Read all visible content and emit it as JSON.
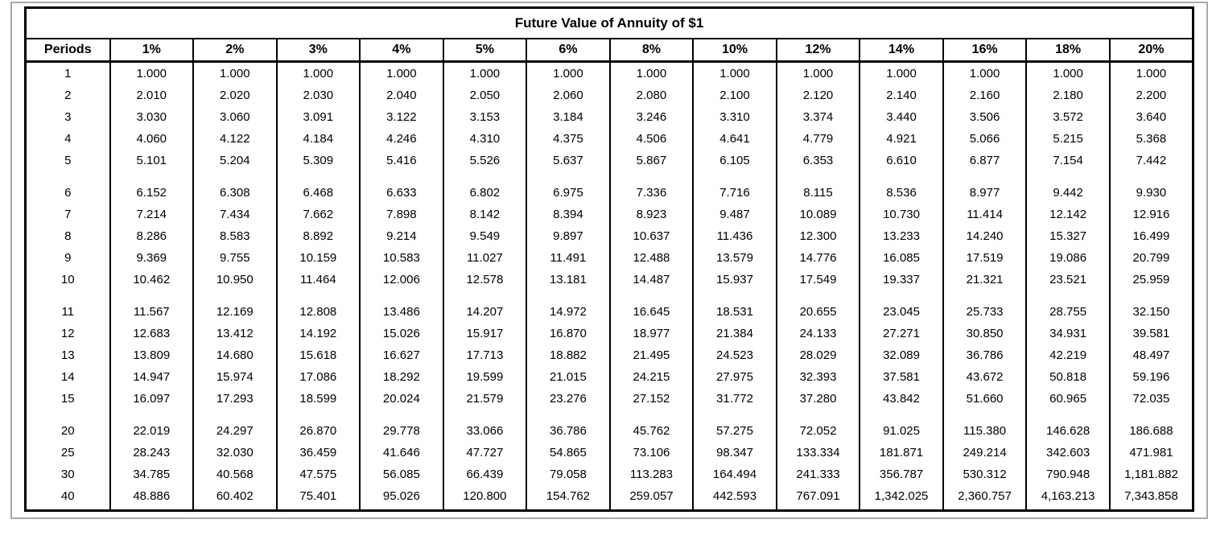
{
  "chart_data": {
    "type": "table",
    "title": "Future Value of Annuity of $1",
    "columns": [
      "Periods",
      "1%",
      "2%",
      "3%",
      "4%",
      "5%",
      "6%",
      "8%",
      "10%",
      "12%",
      "14%",
      "16%",
      "18%",
      "20%"
    ],
    "row_groups": [
      [
        [
          "1",
          "1.000",
          "1.000",
          "1.000",
          "1.000",
          "1.000",
          "1.000",
          "1.000",
          "1.000",
          "1.000",
          "1.000",
          "1.000",
          "1.000",
          "1.000"
        ],
        [
          "2",
          "2.010",
          "2.020",
          "2.030",
          "2.040",
          "2.050",
          "2.060",
          "2.080",
          "2.100",
          "2.120",
          "2.140",
          "2.160",
          "2.180",
          "2.200"
        ],
        [
          "3",
          "3.030",
          "3.060",
          "3.091",
          "3.122",
          "3.153",
          "3.184",
          "3.246",
          "3.310",
          "3.374",
          "3.440",
          "3.506",
          "3.572",
          "3.640"
        ],
        [
          "4",
          "4.060",
          "4.122",
          "4.184",
          "4.246",
          "4.310",
          "4.375",
          "4.506",
          "4.641",
          "4.779",
          "4.921",
          "5.066",
          "5.215",
          "5.368"
        ],
        [
          "5",
          "5.101",
          "5.204",
          "5.309",
          "5.416",
          "5.526",
          "5.637",
          "5.867",
          "6.105",
          "6.353",
          "6.610",
          "6.877",
          "7.154",
          "7.442"
        ]
      ],
      [
        [
          "6",
          "6.152",
          "6.308",
          "6.468",
          "6.633",
          "6.802",
          "6.975",
          "7.336",
          "7.716",
          "8.115",
          "8.536",
          "8.977",
          "9.442",
          "9.930"
        ],
        [
          "7",
          "7.214",
          "7.434",
          "7.662",
          "7.898",
          "8.142",
          "8.394",
          "8.923",
          "9.487",
          "10.089",
          "10.730",
          "11.414",
          "12.142",
          "12.916"
        ],
        [
          "8",
          "8.286",
          "8.583",
          "8.892",
          "9.214",
          "9.549",
          "9.897",
          "10.637",
          "11.436",
          "12.300",
          "13.233",
          "14.240",
          "15.327",
          "16.499"
        ],
        [
          "9",
          "9.369",
          "9.755",
          "10.159",
          "10.583",
          "11.027",
          "11.491",
          "12.488",
          "13.579",
          "14.776",
          "16.085",
          "17.519",
          "19.086",
          "20.799"
        ],
        [
          "10",
          "10.462",
          "10.950",
          "11.464",
          "12.006",
          "12.578",
          "13.181",
          "14.487",
          "15.937",
          "17.549",
          "19.337",
          "21.321",
          "23.521",
          "25.959"
        ]
      ],
      [
        [
          "11",
          "11.567",
          "12.169",
          "12.808",
          "13.486",
          "14.207",
          "14.972",
          "16.645",
          "18.531",
          "20.655",
          "23.045",
          "25.733",
          "28.755",
          "32.150"
        ],
        [
          "12",
          "12.683",
          "13.412",
          "14.192",
          "15.026",
          "15.917",
          "16.870",
          "18.977",
          "21.384",
          "24.133",
          "27.271",
          "30.850",
          "34.931",
          "39.581"
        ],
        [
          "13",
          "13.809",
          "14.680",
          "15.618",
          "16.627",
          "17.713",
          "18.882",
          "21.495",
          "24.523",
          "28.029",
          "32.089",
          "36.786",
          "42.219",
          "48.497"
        ],
        [
          "14",
          "14.947",
          "15.974",
          "17.086",
          "18.292",
          "19.599",
          "21.015",
          "24.215",
          "27.975",
          "32.393",
          "37.581",
          "43.672",
          "50.818",
          "59.196"
        ],
        [
          "15",
          "16.097",
          "17.293",
          "18.599",
          "20.024",
          "21.579",
          "23.276",
          "27.152",
          "31.772",
          "37.280",
          "43.842",
          "51.660",
          "60.965",
          "72.035"
        ]
      ],
      [
        [
          "20",
          "22.019",
          "24.297",
          "26.870",
          "29.778",
          "33.066",
          "36.786",
          "45.762",
          "57.275",
          "72.052",
          "91.025",
          "115.380",
          "146.628",
          "186.688"
        ],
        [
          "25",
          "28.243",
          "32.030",
          "36.459",
          "41.646",
          "47.727",
          "54.865",
          "73.106",
          "98.347",
          "133.334",
          "181.871",
          "249.214",
          "342.603",
          "471.981"
        ],
        [
          "30",
          "34.785",
          "40.568",
          "47.575",
          "56.085",
          "66.439",
          "79.058",
          "113.283",
          "164.494",
          "241.333",
          "356.787",
          "530.312",
          "790.948",
          "1,181.882"
        ],
        [
          "40",
          "48.886",
          "60.402",
          "75.401",
          "95.026",
          "120.800",
          "154.762",
          "259.057",
          "442.593",
          "767.091",
          "1,342.025",
          "2,360.757",
          "4,163.213",
          "7,343.858"
        ]
      ]
    ],
    "layout": {
      "grid": "internal vertical rules only in header and body; no horizontal rules between body rows; blank gap between row groups",
      "border_color": "#000000",
      "frame_color": "#a9a9a9",
      "text_color": "#000000",
      "background": "#ffffff"
    }
  }
}
